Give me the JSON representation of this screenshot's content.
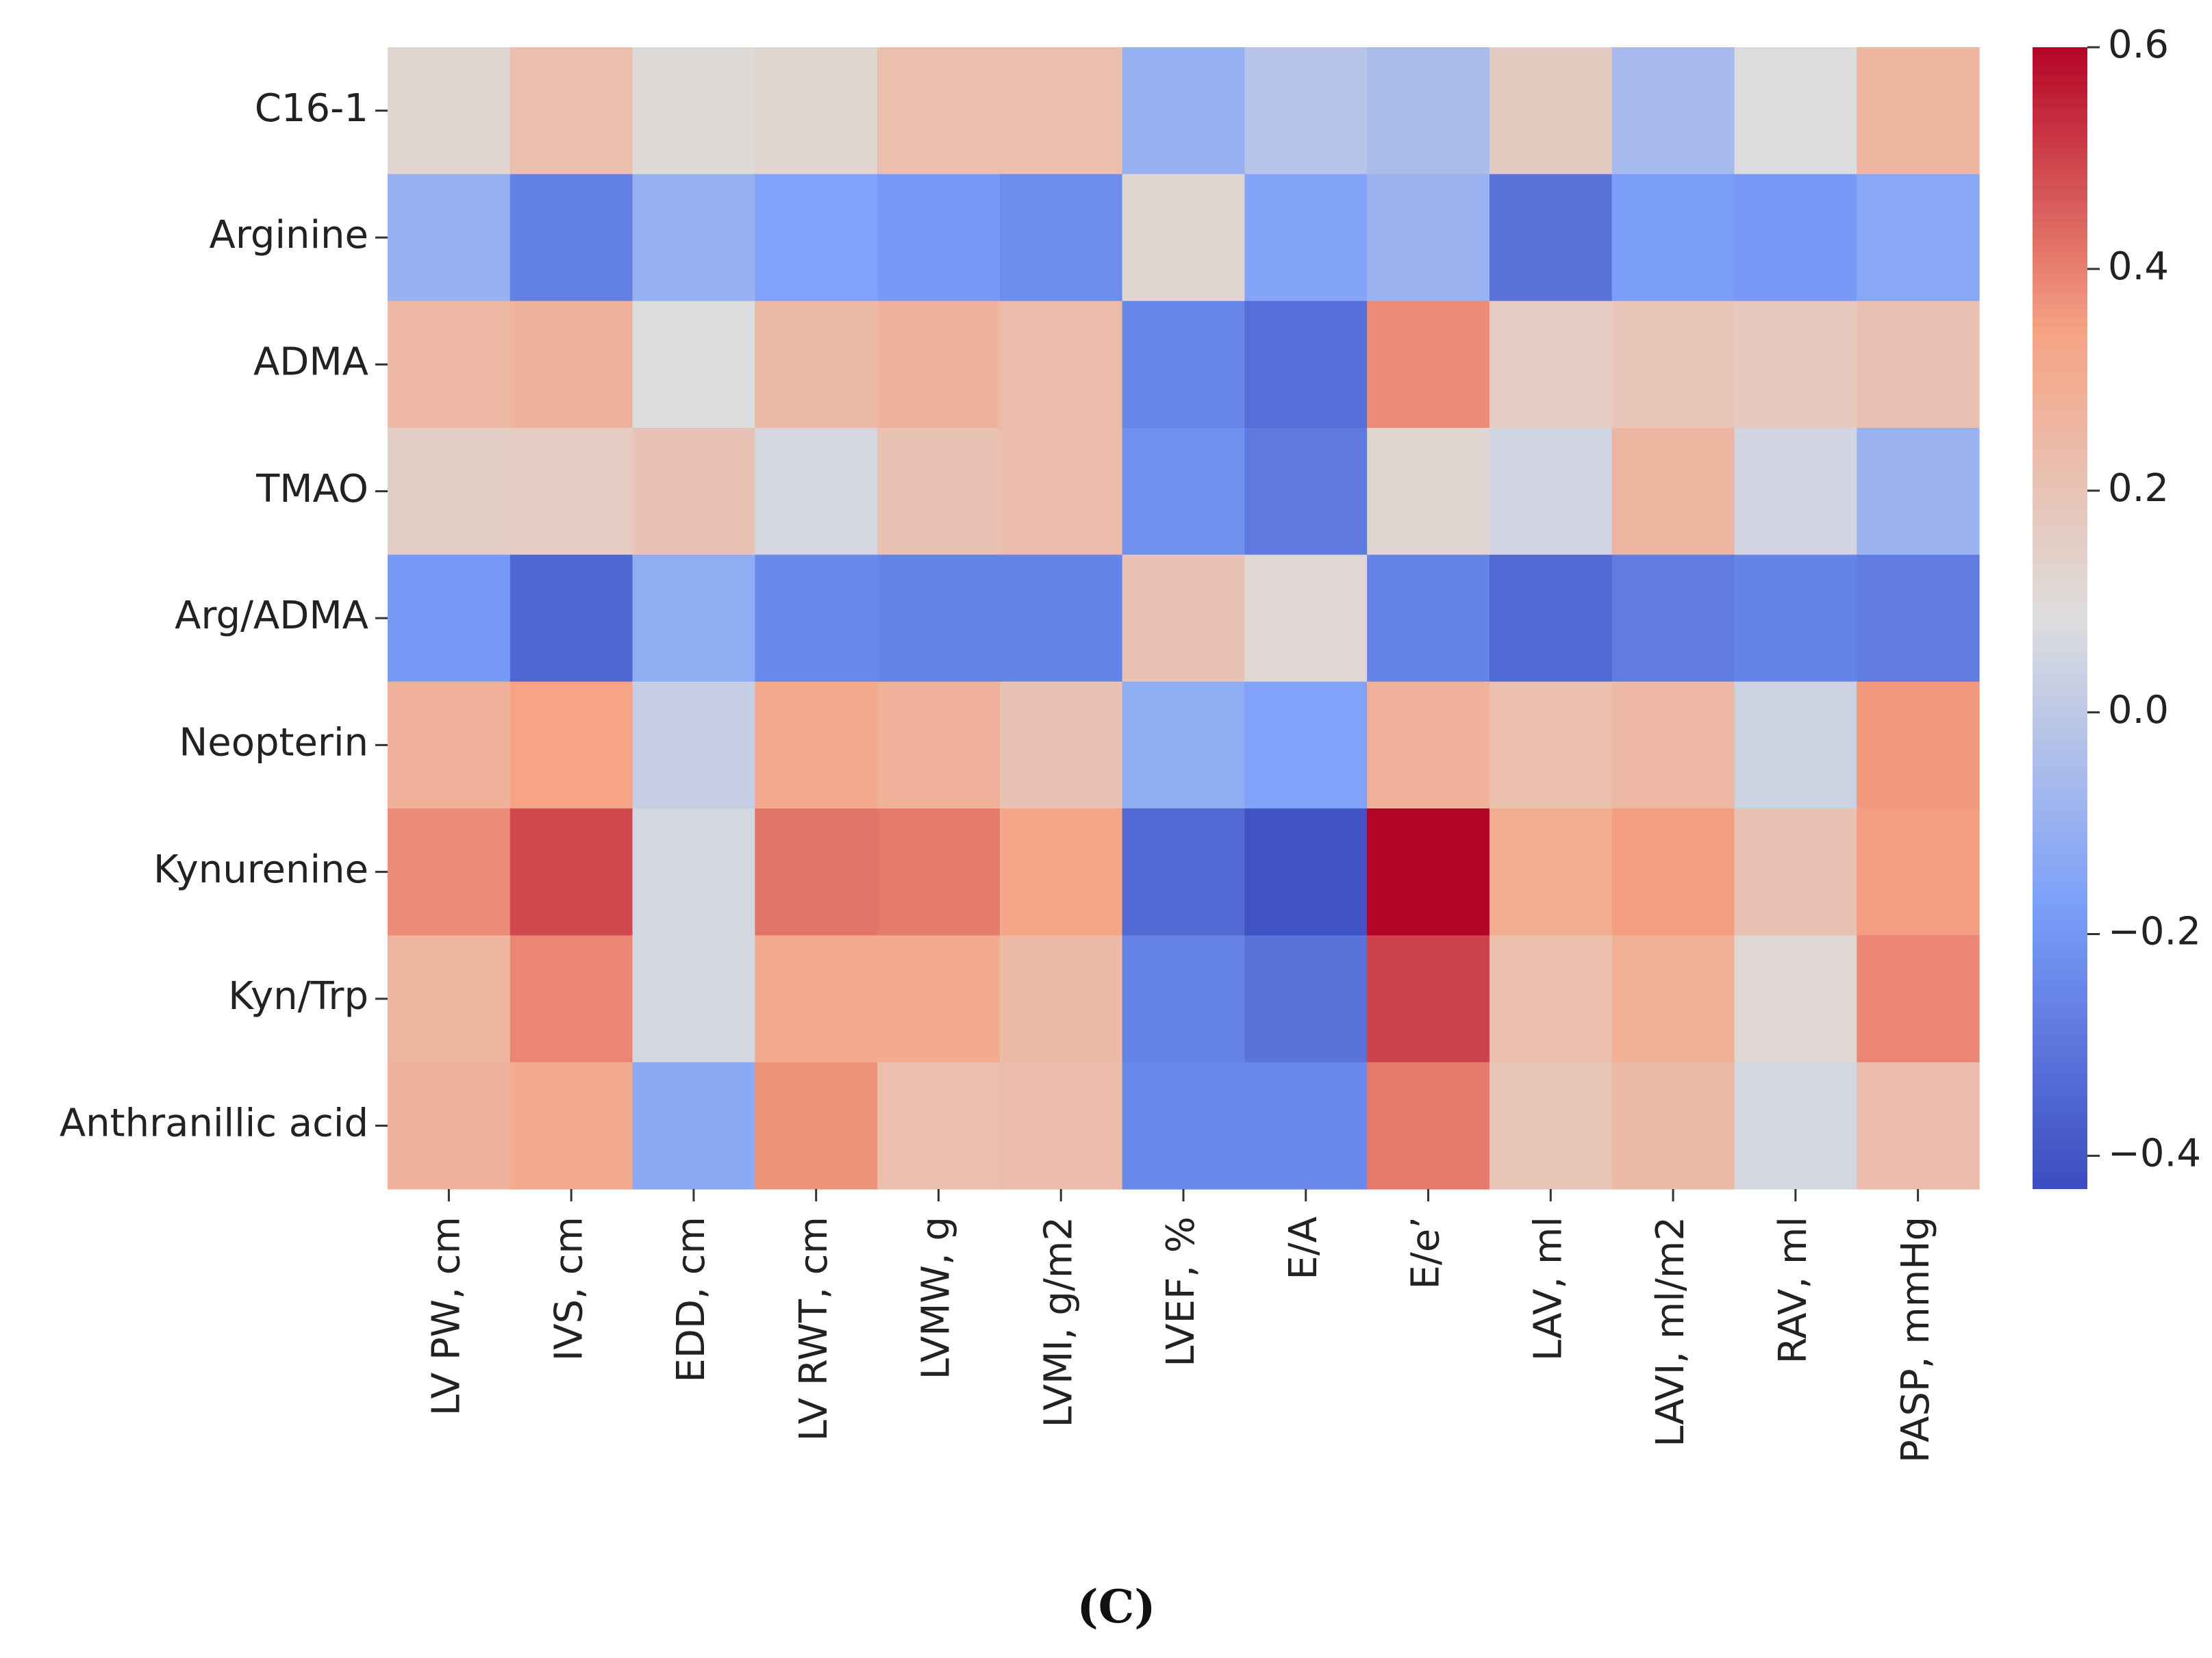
{
  "chart_data": {
    "type": "heatmap",
    "title": "",
    "xlabel": "",
    "ylabel": "",
    "panel_label": "(C)",
    "rows": [
      "C16-1",
      "Arginine",
      "ADMA",
      "TMAO",
      "Arg/ADMA",
      "Neopterin",
      "Kynurenine",
      "Kyn/Trp",
      "Anthranillic acid"
    ],
    "columns": [
      "LV PW, cm",
      "IVS, cm",
      "EDD, cm",
      "LV RWT, cm",
      "LVMW, g",
      "LVMI, g/m2",
      "LVEF, %",
      "E/A",
      "E/e’",
      "LAV, ml",
      "LAVI, ml/m2",
      "RAV, ml",
      "PASP, mmHg"
    ],
    "values": [
      [
        0.12,
        0.22,
        0.1,
        0.12,
        0.22,
        0.22,
        -0.1,
        -0.02,
        -0.05,
        0.17,
        -0.06,
        0.08,
        0.26
      ],
      [
        -0.1,
        -0.27,
        -0.1,
        -0.16,
        -0.19,
        -0.23,
        0.12,
        -0.15,
        -0.09,
        -0.31,
        -0.18,
        -0.19,
        -0.14
      ],
      [
        0.25,
        0.27,
        0.08,
        0.24,
        0.27,
        0.23,
        -0.25,
        -0.32,
        0.38,
        0.16,
        0.19,
        0.18,
        0.21
      ],
      [
        0.15,
        0.16,
        0.2,
        0.06,
        0.21,
        0.23,
        -0.22,
        -0.29,
        0.12,
        0.05,
        0.26,
        0.05,
        -0.09
      ],
      [
        -0.19,
        -0.35,
        -0.12,
        -0.24,
        -0.26,
        -0.26,
        0.2,
        0.11,
        -0.26,
        -0.34,
        -0.28,
        -0.26,
        -0.28
      ],
      [
        0.28,
        0.34,
        0.02,
        0.31,
        0.28,
        0.2,
        -0.12,
        -0.16,
        0.28,
        0.22,
        0.25,
        0.04,
        0.36
      ],
      [
        0.38,
        0.49,
        0.06,
        0.42,
        0.41,
        0.33,
        -0.34,
        -0.41,
        0.6,
        0.3,
        0.35,
        0.21,
        0.35
      ],
      [
        0.26,
        0.39,
        0.06,
        0.31,
        0.31,
        0.24,
        -0.26,
        -0.31,
        0.5,
        0.22,
        0.29,
        0.11,
        0.39
      ],
      [
        0.27,
        0.31,
        -0.13,
        0.37,
        0.22,
        0.23,
        -0.24,
        -0.24,
        0.41,
        0.19,
        0.24,
        0.06,
        0.23
      ]
    ],
    "colorbar": {
      "colormap": "coolwarm",
      "vmin": -0.43,
      "vmax": 0.6,
      "ticks": [
        0.6,
        0.4,
        0.2,
        0.0,
        -0.2,
        -0.4
      ],
      "tick_labels": [
        "0.6",
        "0.4",
        "0.2",
        "0.0",
        "−0.2",
        "−0.4"
      ]
    }
  }
}
